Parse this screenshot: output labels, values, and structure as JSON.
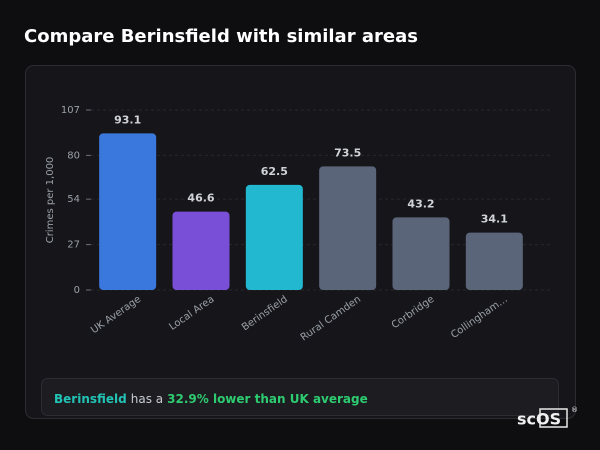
{
  "header": {
    "title": "Compare Berinsfield with similar areas"
  },
  "chart_data": {
    "type": "bar",
    "ylabel": "Crimes per 1,000",
    "categories": [
      "UK Average",
      "Local Area",
      "Berinsfield",
      "Rural Camden",
      "Corbridge",
      "Collingham…"
    ],
    "values": [
      93.1,
      46.6,
      62.5,
      73.5,
      43.2,
      34.1
    ],
    "colors": [
      "#3a78de",
      "#7a4fd8",
      "#22b9d0",
      "#5b6579",
      "#5b6579",
      "#5b6579"
    ],
    "ylim": [
      0,
      107
    ],
    "yticks": [
      0,
      27,
      54,
      80,
      107
    ],
    "grid": true
  },
  "insight": {
    "area": "Berinsfield",
    "connector": "has a",
    "highlight": "32.9% lower than UK average"
  },
  "logo": {
    "name": "scOS",
    "mark": "®"
  }
}
